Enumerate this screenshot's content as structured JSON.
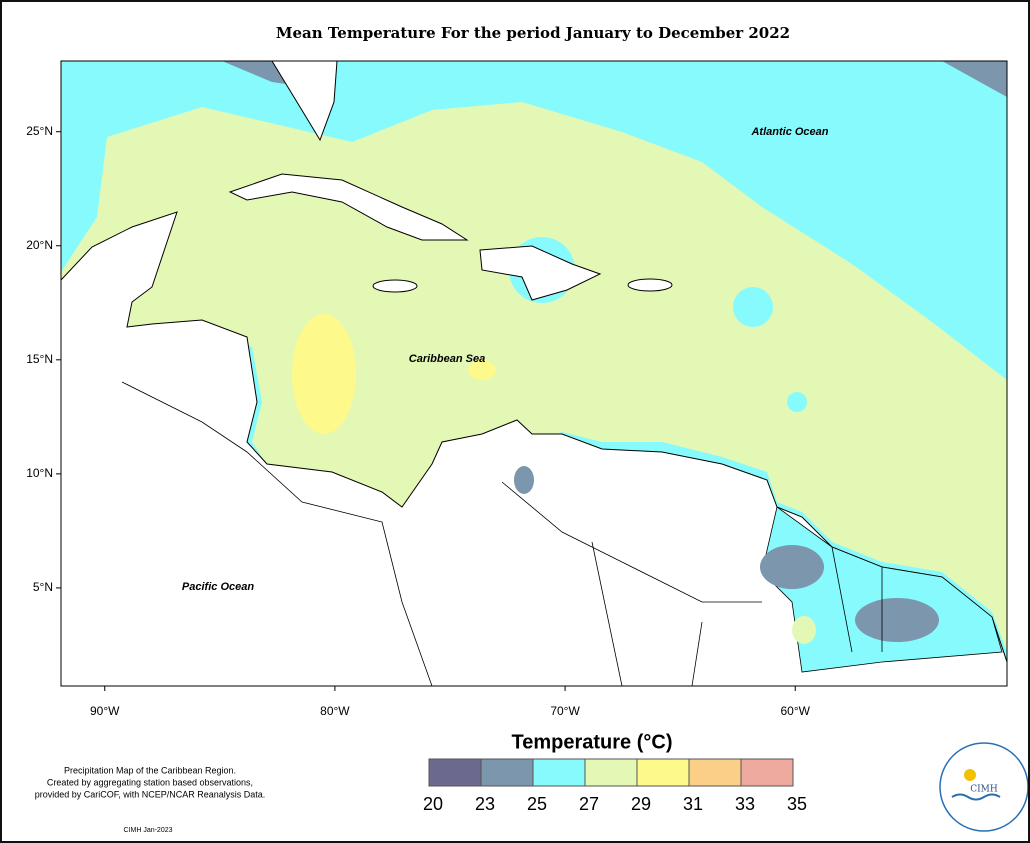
{
  "title": "Mean Temperature For the period January to December 2022",
  "map": {
    "xlim": [
      -91.9,
      -50.8
    ],
    "ylim": [
      0.7,
      28.1
    ],
    "xticks": [
      {
        "value": -90,
        "label": "90°W"
      },
      {
        "value": -80,
        "label": "80°W"
      },
      {
        "value": -70,
        "label": "70°W"
      },
      {
        "value": -60,
        "label": "60°W"
      }
    ],
    "yticks": [
      {
        "value": 5,
        "label": "5°N"
      },
      {
        "value": 10,
        "label": "10°N"
      },
      {
        "value": 15,
        "label": "15°N"
      },
      {
        "value": 20,
        "label": "20°N"
      },
      {
        "value": 25,
        "label": "25°N"
      }
    ],
    "labels": [
      "Atlantic Ocean",
      "Caribbean Sea",
      "Pacific Ocean"
    ]
  },
  "legend": {
    "title": "Temperature (°C)",
    "bins": [
      20,
      23,
      25,
      27,
      29,
      31,
      33,
      35
    ],
    "colors": [
      "#6b6a8e",
      "#7b96ad",
      "#86fafd",
      "#e3f8b4",
      "#fdf98b",
      "#fbcf88",
      "#efaaa0"
    ]
  },
  "footnote": [
    "Precipitation Map of the Caribbean Region.",
    "Created by aggregating station based observations,",
    "provided by CariCOF, with NCEP/NCAR Reanalysis Data."
  ],
  "credit": "CIMH Jan-2023",
  "logo": "CIMH"
}
